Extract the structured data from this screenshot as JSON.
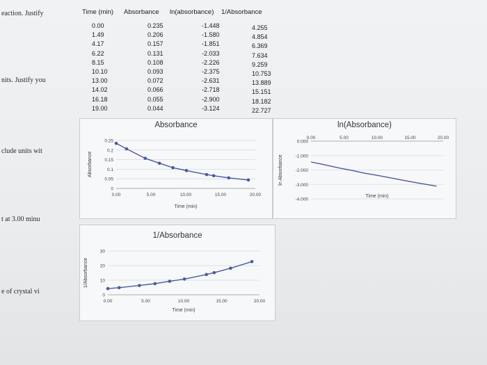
{
  "margin_notes": [
    "eaction. Justify",
    "nits. Justify you",
    "clude units wit",
    "t at 3.00 minu",
    "e of crystal vi"
  ],
  "table": {
    "headers": [
      "Time (min)",
      "Absorbance",
      "ln(absorbance)",
      "1/Absorbance"
    ],
    "rows": [
      [
        "0.00",
        "0.235",
        "-1.448",
        "4.255"
      ],
      [
        "1.49",
        "0.206",
        "-1.580",
        "4.854"
      ],
      [
        "4.17",
        "0.157",
        "-1.851",
        "6.369"
      ],
      [
        "6.22",
        "0.131",
        "-2.033",
        "7.634"
      ],
      [
        "8.15",
        "0.108",
        "-2.226",
        "9.259"
      ],
      [
        "10.10",
        "0.093",
        "-2.375",
        "10.753"
      ],
      [
        "13.00",
        "0.072",
        "-2.631",
        "13.889"
      ],
      [
        "14.02",
        "0.066",
        "-2.718",
        "15.151"
      ],
      [
        "16.18",
        "0.055",
        "-2.900",
        "18.182"
      ],
      [
        "19.00",
        "0.044",
        "-3.124",
        "22.727"
      ]
    ]
  },
  "chart_data": [
    {
      "type": "line",
      "title": "Absorbance",
      "xlabel": "Time (min)",
      "ylabel": "Absorbance",
      "x": [
        0.0,
        1.49,
        4.17,
        6.22,
        8.15,
        10.1,
        13.0,
        14.02,
        16.18,
        19.0
      ],
      "y": [
        0.235,
        0.206,
        0.157,
        0.131,
        0.108,
        0.093,
        0.072,
        0.066,
        0.055,
        0.044
      ],
      "xlim": [
        0,
        20
      ],
      "ylim": [
        0,
        0.25
      ],
      "xticks": [
        "0.00",
        "5.00",
        "10.00",
        "15.00",
        "20.00"
      ],
      "yticks": [
        "0",
        "0.05",
        "0.1",
        "0.15",
        "0.2",
        "0.25"
      ],
      "markers": true,
      "grid": true,
      "color": "#4a5a9c"
    },
    {
      "type": "line",
      "title": "ln(Absorbance)",
      "xlabel": "Time (min)",
      "ylabel": "ln Absorbance",
      "x": [
        0.0,
        1.49,
        4.17,
        6.22,
        8.15,
        10.1,
        13.0,
        14.02,
        16.18,
        19.0
      ],
      "y": [
        -1.448,
        -1.58,
        -1.851,
        -2.033,
        -2.226,
        -2.375,
        -2.631,
        -2.718,
        -2.9,
        -3.124
      ],
      "xlim": [
        0,
        20
      ],
      "ylim": [
        -4,
        0
      ],
      "xticks": [
        "0.00",
        "5.00",
        "10.00",
        "15.00",
        "20.00"
      ],
      "yticks": [
        "0.000",
        "-1.000",
        "-2.000",
        "-3.000",
        "-4.000"
      ],
      "markers": false,
      "grid": true,
      "color": "#4a5a9c"
    },
    {
      "type": "line",
      "title": "1/Absorbance",
      "xlabel": "Time (min)",
      "ylabel": "1/Absorbance",
      "x": [
        0.0,
        1.49,
        4.17,
        6.22,
        8.15,
        10.1,
        13.0,
        14.02,
        16.18,
        19.0
      ],
      "y": [
        4.255,
        4.854,
        6.369,
        7.634,
        9.259,
        10.753,
        13.889,
        15.151,
        18.182,
        22.727
      ],
      "xlim": [
        0,
        20
      ],
      "ylim": [
        0,
        30
      ],
      "xticks": [
        "0.00",
        "5.00",
        "10.00",
        "15.00",
        "20.00"
      ],
      "yticks": [
        "0",
        "10",
        "20",
        "30"
      ],
      "markers": true,
      "grid": true,
      "color": "#4a5a9c"
    }
  ]
}
